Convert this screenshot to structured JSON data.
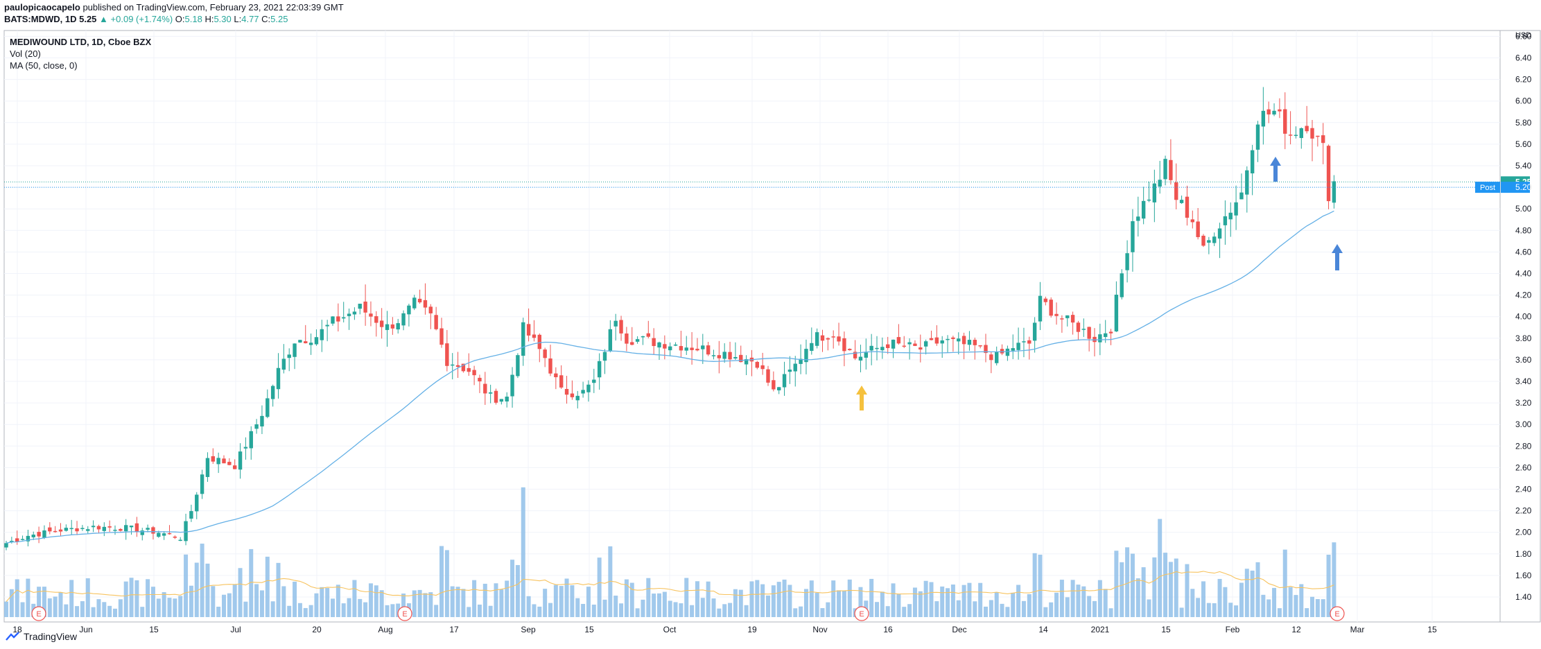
{
  "header": {
    "author": "paulopicaocapelo",
    "published_text": "published on TradingView.com, February 23, 2021 22:03:39 GMT",
    "symbol": "BATS:MDWD, 1D",
    "last": "5.25",
    "change": "▲ +0.09 (+1.74%)",
    "o_label": "O:",
    "o_value": "5.18",
    "h_label": "H:",
    "h_value": "5.30",
    "l_label": "L:",
    "l_value": "4.77",
    "c_label": "C:",
    "c_value": "5.25"
  },
  "legend": {
    "title": "MEDIWOUND LTD, 1D, Cboe BZX",
    "vol": "Vol (20)",
    "ma": "MA (50, close, 0)"
  },
  "footer": {
    "brand": "TradingView",
    "icon": "tradingview-logo-icon"
  },
  "colors": {
    "up": "#26a69a",
    "down": "#ef5350",
    "volume": "#90bfe9",
    "ma": "#64b0e6",
    "vol_ma": "#f7c35f",
    "post": "#2196f3",
    "arrow_blue": "#4a86d8",
    "arrow_yellow": "#f5c13e"
  },
  "price_labels": {
    "last": "5.25",
    "post_label": "Post",
    "post_value": "5.20",
    "currency": "USD"
  },
  "chart_data": {
    "type": "candlestick",
    "title": "MEDIWOUND LTD, 1D, Cboe BZX",
    "y_axis": {
      "ticks": [
        "1.40",
        "1.60",
        "1.80",
        "2.00",
        "2.20",
        "2.40",
        "2.60",
        "2.80",
        "3.00",
        "3.20",
        "3.40",
        "3.60",
        "3.80",
        "4.00",
        "4.20",
        "4.40",
        "4.60",
        "4.80",
        "5.00",
        "5.20",
        "5.40",
        "5.60",
        "5.80",
        "6.00",
        "6.20",
        "6.40",
        "6.60"
      ],
      "range": [
        1.3,
        6.6
      ],
      "side": "right"
    },
    "x_axis": {
      "ticks": [
        "18",
        "Jun",
        "15",
        "Jul",
        "20",
        "Aug",
        "17",
        "Sep",
        "15",
        "Oct",
        "19",
        "Nov",
        "16",
        "Dec",
        "14",
        "2021",
        "15",
        "Feb",
        "12",
        "Mar",
        "15"
      ]
    },
    "price_keyframes": [
      [
        0,
        1.9
      ],
      [
        4,
        1.97
      ],
      [
        10,
        2.02
      ],
      [
        16,
        2.05
      ],
      [
        22,
        2.04
      ],
      [
        28,
        2.0
      ],
      [
        32,
        1.95
      ],
      [
        34,
        2.2
      ],
      [
        37,
        2.7
      ],
      [
        42,
        2.62
      ],
      [
        47,
        3.1
      ],
      [
        50,
        3.5
      ],
      [
        53,
        3.78
      ],
      [
        57,
        3.82
      ],
      [
        60,
        3.95
      ],
      [
        65,
        4.08
      ],
      [
        70,
        3.9
      ],
      [
        73,
        4.0
      ],
      [
        75,
        4.12
      ],
      [
        78,
        4.0
      ],
      [
        81,
        3.6
      ],
      [
        85,
        3.5
      ],
      [
        89,
        3.25
      ],
      [
        92,
        3.25
      ],
      [
        95,
        3.9
      ],
      [
        99,
        3.62
      ],
      [
        102,
        3.3
      ],
      [
        106,
        3.3
      ],
      [
        108,
        3.4
      ],
      [
        111,
        3.85
      ],
      [
        112,
        4.0
      ],
      [
        114,
        3.8
      ],
      [
        125,
        3.73
      ],
      [
        133,
        3.65
      ],
      [
        138,
        3.58
      ],
      [
        141,
        3.3
      ],
      [
        145,
        3.55
      ],
      [
        148,
        3.8
      ],
      [
        152,
        3.85
      ],
      [
        156,
        3.62
      ],
      [
        162,
        3.75
      ],
      [
        168,
        3.7
      ],
      [
        172,
        3.78
      ],
      [
        178,
        3.72
      ],
      [
        182,
        3.62
      ],
      [
        185,
        3.72
      ],
      [
        188,
        3.75
      ],
      [
        190,
        4.15
      ],
      [
        194,
        3.98
      ],
      [
        197,
        3.9
      ],
      [
        200,
        3.8
      ],
      [
        203,
        3.9
      ],
      [
        205,
        4.4
      ],
      [
        207,
        4.9
      ],
      [
        211,
        5.2
      ],
      [
        213,
        5.4
      ],
      [
        215,
        5.1
      ],
      [
        218,
        4.9
      ],
      [
        220,
        4.6
      ],
      [
        222,
        4.8
      ],
      [
        225,
        5.0
      ],
      [
        227,
        5.15
      ],
      [
        230,
        5.85
      ],
      [
        233,
        5.9
      ],
      [
        236,
        5.7
      ],
      [
        239,
        5.8
      ],
      [
        242,
        5.55
      ],
      [
        243,
        5.15
      ],
      [
        244,
        5.25
      ]
    ],
    "volume_axis": "unlabeled",
    "indicators": [
      "Vol (20)",
      "MA (50, close, 0)"
    ],
    "earnings_markers": {
      "label": "E",
      "count": 4
    },
    "annotations": {
      "arrows": [
        "blue-up",
        "blue-up",
        "yellow-up"
      ]
    }
  }
}
